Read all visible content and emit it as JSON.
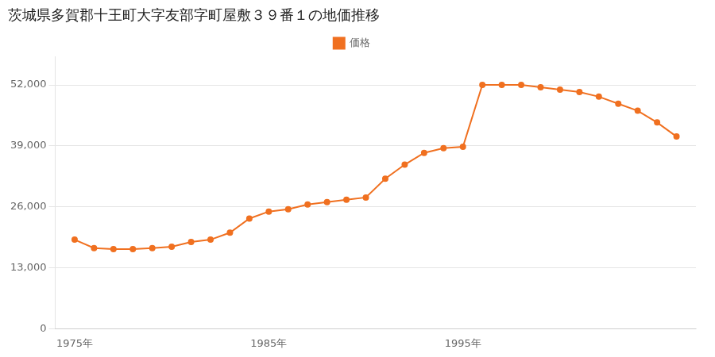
{
  "chart_data": {
    "type": "line",
    "title": "茨城県多賀郡十王町大字友部字町屋敷３９番１の地価推移",
    "x": [
      1975,
      1976,
      1977,
      1978,
      1979,
      1980,
      1981,
      1982,
      1983,
      1984,
      1985,
      1986,
      1987,
      1988,
      1989,
      1990,
      1991,
      1992,
      1993,
      1994,
      1995,
      1996,
      1997,
      1998,
      1999,
      2000,
      2001,
      2002,
      2003,
      2004,
      2005,
      2006
    ],
    "series": [
      {
        "name": "価格",
        "color": "#f07020",
        "marker": "circle",
        "values": [
          19000,
          17200,
          17000,
          17000,
          17200,
          17500,
          18500,
          19000,
          20500,
          23500,
          25000,
          25500,
          26500,
          27000,
          27500,
          28000,
          32000,
          35000,
          37500,
          38500,
          38800,
          52000,
          52000,
          52000,
          51500,
          51000,
          50500,
          49500,
          48000,
          46500,
          44000,
          41000
        ]
      }
    ],
    "xlim": [
      1974,
      2007
    ],
    "xticks": [
      {
        "value": 1975,
        "label": "1975年"
      },
      {
        "value": 1985,
        "label": "1985年"
      },
      {
        "value": 1995,
        "label": "1995年"
      }
    ],
    "ylim": [
      0,
      58000
    ],
    "yticks": [
      0,
      {
        "value": 13000,
        "label": "13,000"
      },
      {
        "value": 26000,
        "label": "26,000"
      },
      {
        "value": 39000,
        "label": "39,000"
      },
      {
        "value": 52000,
        "label": "52,000"
      }
    ],
    "grid": "y",
    "legend": "top"
  }
}
